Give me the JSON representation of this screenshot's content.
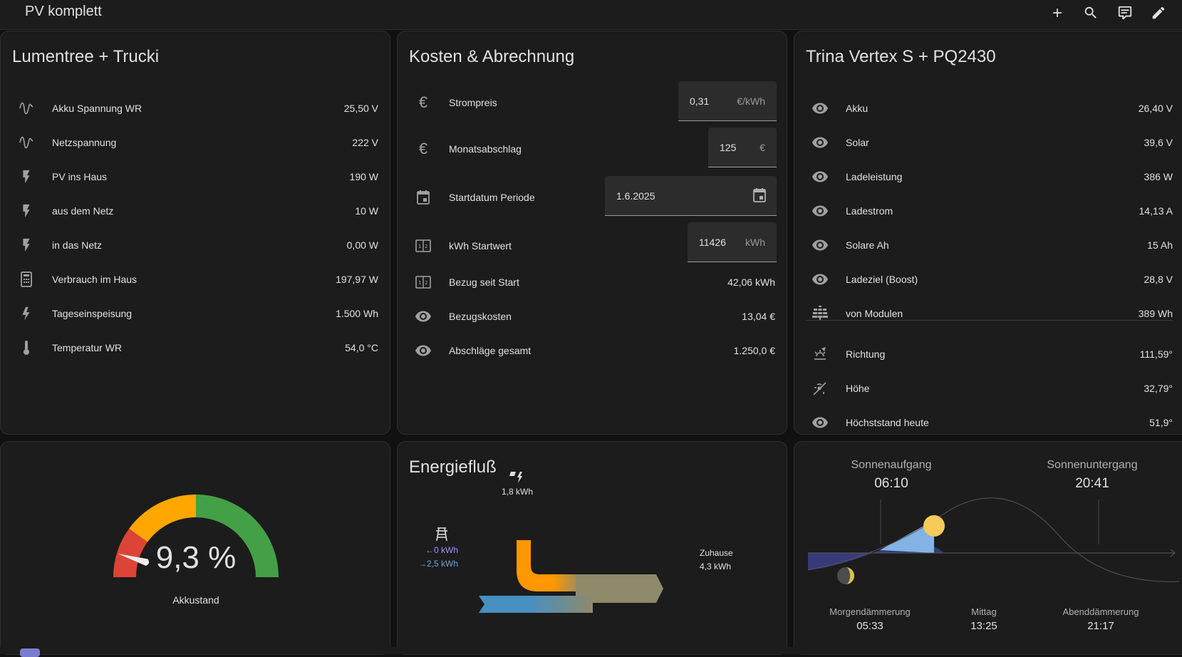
{
  "header": {
    "title": "PV komplett",
    "actions": [
      {
        "name": "add-icon"
      },
      {
        "name": "search-icon"
      },
      {
        "name": "assist-icon"
      },
      {
        "name": "edit-icon"
      }
    ]
  },
  "card1": {
    "title": "Lumentree + Trucki",
    "rows": [
      {
        "icon": "sine-wave-icon",
        "label": "Akku Spannung WR",
        "value": "25,50 V"
      },
      {
        "icon": "sine-wave-icon",
        "label": "Netzspannung",
        "value": "222 V"
      },
      {
        "icon": "flash-icon",
        "label": "PV ins Haus",
        "value": "190 W"
      },
      {
        "icon": "flash-icon",
        "label": "aus dem Netz",
        "value": "10 W"
      },
      {
        "icon": "flash-icon",
        "label": "in das Netz",
        "value": "0,00 W"
      },
      {
        "icon": "calculator-icon",
        "label": "Verbrauch im Haus",
        "value": "197,97 W"
      },
      {
        "icon": "lightning-outline-icon",
        "label": "Tageseinspeisung",
        "value": "1.500 Wh"
      },
      {
        "icon": "thermometer-icon",
        "label": "Temperatur WR",
        "value": "54,0 °C"
      }
    ]
  },
  "card2": {
    "title": "Kosten & Abrechnung",
    "inputs": [
      {
        "icon": "euro-icon",
        "label": "Strompreis",
        "value": "0,31",
        "unit": "€/kWh"
      },
      {
        "icon": "euro-icon",
        "label": "Monatsabschlag",
        "value": "125",
        "unit": "€"
      },
      {
        "icon": "calendar-icon",
        "label": "Startdatum Periode",
        "value": "1.6.2025"
      },
      {
        "icon": "meter-icon",
        "label": "kWh Startwert",
        "value": "11426",
        "unit": "kWh"
      }
    ],
    "rows": [
      {
        "icon": "meter-icon",
        "label": "Bezug seit Start",
        "value": "42,06 kWh"
      },
      {
        "icon": "eye-icon",
        "label": "Bezugskosten",
        "value": "13,04 €"
      },
      {
        "icon": "eye-icon",
        "label": "Abschläge gesamt",
        "value": "1.250,0 €"
      }
    ]
  },
  "card3": {
    "title": "Trina Vertex S + PQ2430",
    "rows": [
      {
        "icon": "eye-icon",
        "label": "Akku",
        "value": "26,40 V"
      },
      {
        "icon": "eye-icon",
        "label": "Solar",
        "value": "39,6 V"
      },
      {
        "icon": "eye-icon",
        "label": "Ladeleistung",
        "value": "386 W"
      },
      {
        "icon": "eye-icon",
        "label": "Ladestrom",
        "value": "14,13 A"
      },
      {
        "icon": "eye-icon",
        "label": "Solare Ah",
        "value": "15 Ah"
      },
      {
        "icon": "eye-icon",
        "label": "Ladeziel (Boost)",
        "value": "28,8 V"
      },
      {
        "icon": "solar-panel-icon",
        "label": "von Modulen",
        "value": "389 Wh"
      }
    ],
    "rows2": [
      {
        "icon": "sun-compass-icon",
        "label": "Richtung",
        "value": "111,59°"
      },
      {
        "icon": "sun-angle-icon",
        "label": "Höhe",
        "value": "32,79°"
      },
      {
        "icon": "eye-icon",
        "label": "Höchststand heute",
        "value": "51,9°"
      }
    ]
  },
  "gauge": {
    "value_text": "9,3 %",
    "value": 9.3,
    "label": "Akkustand",
    "colors": {
      "red": "#db4437",
      "orange": "#ffa600",
      "green": "#43a047"
    }
  },
  "energy": {
    "title": "Energiefluß",
    "solar": {
      "icon": "solar-power-icon",
      "value": "1,8 kWh"
    },
    "grid": {
      "icon": "transmission-tower-icon",
      "return": "0 kWh",
      "consumption": "2,5 kWh"
    },
    "home": {
      "label": "Zuhause",
      "value": "4,3 kWh"
    },
    "colors": {
      "solar": "#ff9800",
      "grid": "#488fc2",
      "home": "#8e8a6a",
      "return": "#8353d1"
    }
  },
  "sun": {
    "sunrise_label": "Sonnenaufgang",
    "sunrise": "06:10",
    "sunset_label": "Sonnenuntergang",
    "sunset": "20:41",
    "dawn_label": "Morgendämmerung",
    "dawn": "05:33",
    "noon_label": "Mittag",
    "noon": "13:25",
    "dusk_label": "Abenddämmerung",
    "dusk": "21:17"
  }
}
